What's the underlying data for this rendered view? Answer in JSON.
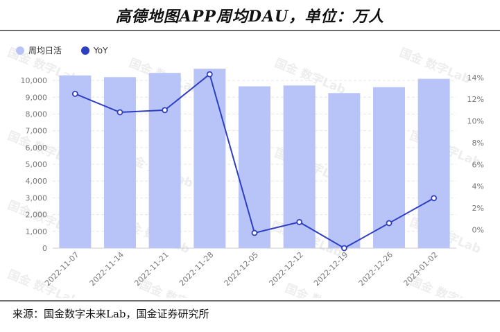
{
  "header": {
    "title": "高德地图APP周均DAU，单位：万人"
  },
  "footer": {
    "source": "来源：国金数字未来Lab，国金证券研究所"
  },
  "watermark": {
    "text": "国金 数字Lab"
  },
  "colors": {
    "bar": "#b8c4f7",
    "line": "#2d3ec1",
    "grid": "#e6e6e6"
  },
  "chart_data": {
    "type": "bar",
    "categories": [
      "2022-11-07",
      "2022-11-14",
      "2022-11-21",
      "2022-11-28",
      "2022-12-05",
      "2022-12-12",
      "2022-12-19",
      "2022-12-26",
      "2023-01-02"
    ],
    "series": [
      {
        "name": "周均日活",
        "type": "bar",
        "axis": "left",
        "values": [
          10300,
          10200,
          10450,
          10700,
          9650,
          9700,
          9250,
          9600,
          10100
        ]
      },
      {
        "name": "YoY",
        "type": "line",
        "axis": "right",
        "values": [
          12.5,
          10.8,
          11.0,
          14.3,
          -0.3,
          0.7,
          -1.7,
          0.6,
          2.9
        ]
      }
    ],
    "y_left": {
      "ylim": [
        0,
        10500
      ],
      "ticks": [
        0,
        1000,
        2000,
        3000,
        4000,
        5000,
        6000,
        7000,
        8000,
        9000,
        10000
      ],
      "tick_labels": [
        "0",
        "1,000",
        "2,000",
        "3,000",
        "4,000",
        "5,000",
        "6,000",
        "7,000",
        "8,000",
        "9,000",
        "10,000"
      ]
    },
    "y_right": {
      "ylim": [
        -1.7,
        14.5
      ],
      "ticks": [
        0,
        2,
        4,
        6,
        8,
        10,
        12,
        14
      ],
      "tick_labels": [
        "0%",
        "2%",
        "4%",
        "6%",
        "8%",
        "10%",
        "12%",
        "14%"
      ]
    },
    "legend": {
      "position": "top-left"
    },
    "grid": true
  }
}
